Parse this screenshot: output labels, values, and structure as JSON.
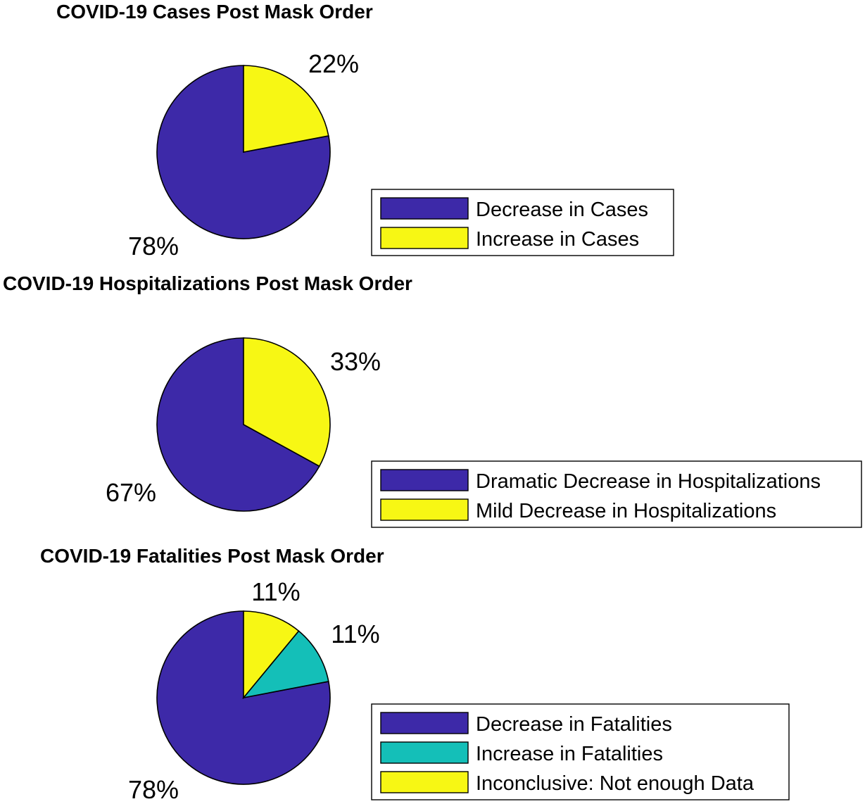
{
  "chart_data": [
    {
      "type": "pie",
      "title": "COVID-19 Cases Post Mask Order",
      "slices": [
        {
          "label": "Decrease in Cases",
          "value": 78,
          "text": "78%",
          "color": "#3d29a8"
        },
        {
          "label": "Increase in Cases",
          "value": 22,
          "text": "22%",
          "color": "#f7f714"
        }
      ],
      "legend_placement": "bottom-right"
    },
    {
      "type": "pie",
      "title": "COVID-19 Hospitalizations Post Mask Order",
      "slices": [
        {
          "label": "Dramatic Decrease in Hospitalizations",
          "value": 67,
          "text": "67%",
          "color": "#3d29a8"
        },
        {
          "label": "Mild Decrease in Hospitalizations",
          "value": 33,
          "text": "33%",
          "color": "#f7f714"
        }
      ],
      "legend_placement": "bottom-right"
    },
    {
      "type": "pie",
      "title": "COVID-19 Fatalities Post Mask Order",
      "slices": [
        {
          "label": "Decrease in Fatalities",
          "value": 78,
          "text": "78%",
          "color": "#3d29a8"
        },
        {
          "label": "Increase in Fatalities",
          "value": 11,
          "text": "11%",
          "color": "#14bfb8"
        },
        {
          "label": "Inconclusive: Not enough Data",
          "value": 11,
          "text": "11%",
          "color": "#f7f714"
        }
      ],
      "legend_placement": "bottom-right"
    }
  ]
}
